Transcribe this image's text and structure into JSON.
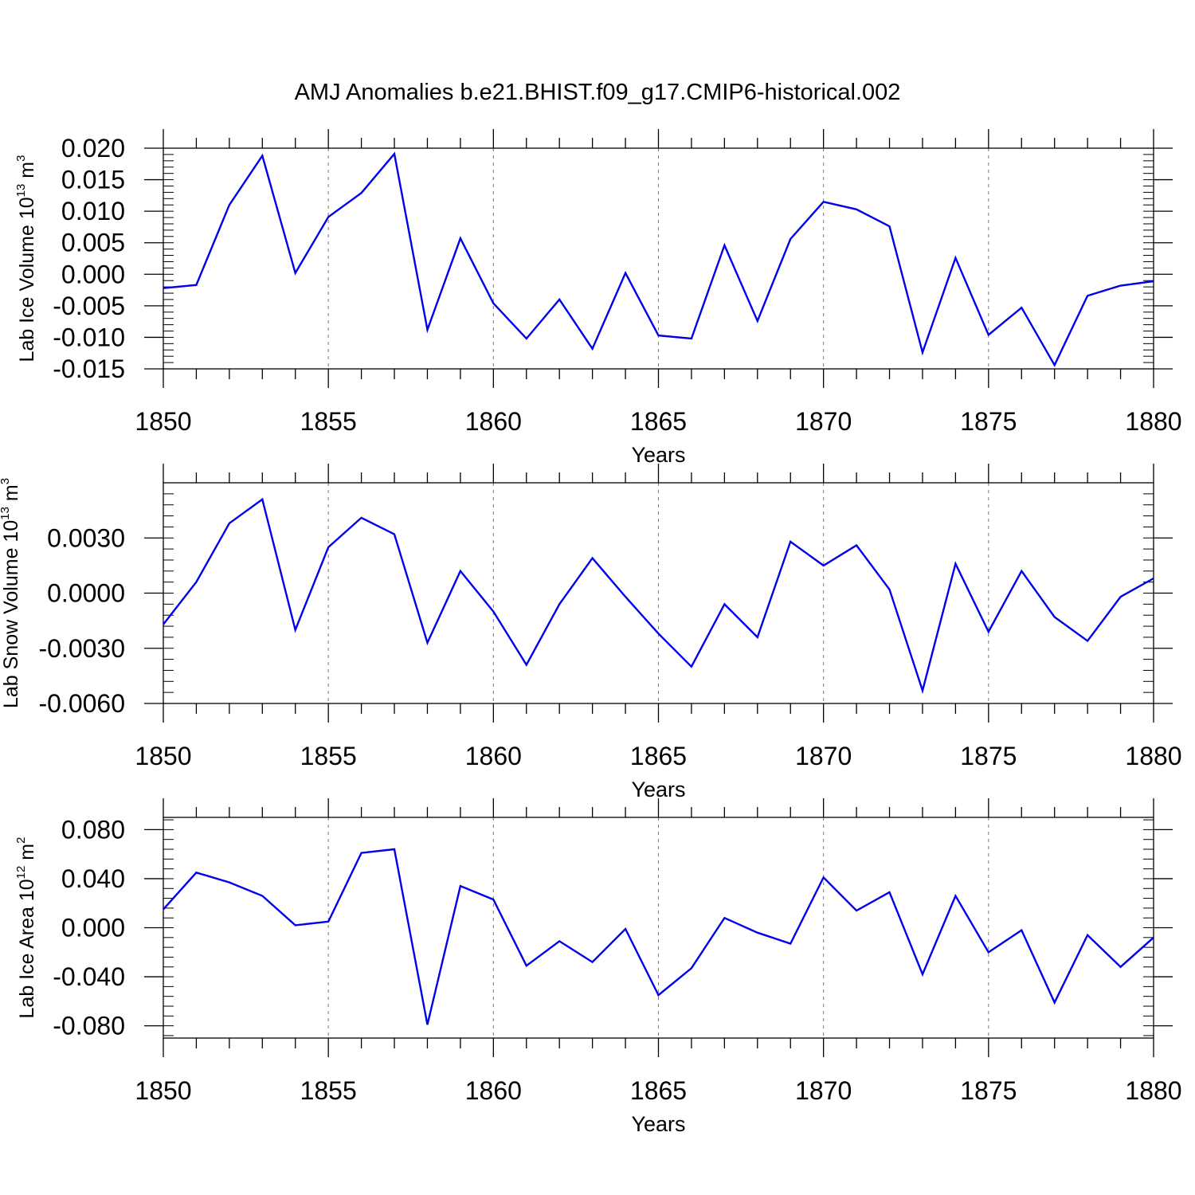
{
  "title": "AMJ Anomalies b.e21.BHIST.f09_g17.CMIP6-historical.002",
  "colors": {
    "line": "#0000ee",
    "axis": "#000000",
    "grid": "#777777"
  },
  "chart_data": [
    {
      "type": "line",
      "ylabel_text": "Lab Ice Volume 10",
      "ylabel_exp": "13",
      "ylabel_unit": "m",
      "ylabel_unit_exp": "3",
      "xlabel": "Years",
      "xlim": [
        1850,
        1880
      ],
      "ylim": [
        -0.015,
        0.02
      ],
      "yticks": [
        -0.015,
        -0.01,
        -0.005,
        0.0,
        0.005,
        0.01,
        0.015,
        0.02
      ],
      "ytick_labels": [
        "-0.015",
        "-0.010",
        "-0.005",
        "0.000",
        "0.005",
        "0.010",
        "0.015",
        "0.020"
      ],
      "xticks": [
        1850,
        1855,
        1860,
        1865,
        1870,
        1875,
        1880
      ],
      "xtick_labels": [
        "1850",
        "1855",
        "1860",
        "1865",
        "1870",
        "1875",
        "1880"
      ],
      "x": [
        1850,
        1851,
        1852,
        1853,
        1854,
        1855,
        1856,
        1857,
        1858,
        1859,
        1860,
        1861,
        1862,
        1863,
        1864,
        1865,
        1866,
        1867,
        1868,
        1869,
        1870,
        1871,
        1872,
        1873,
        1874,
        1875,
        1876,
        1877,
        1878,
        1879,
        1880
      ],
      "y": [
        -0.0022,
        -0.0017,
        0.011,
        0.0188,
        0.0002,
        0.0091,
        0.0129,
        0.0191,
        -0.0088,
        0.0057,
        -0.0046,
        -0.0102,
        -0.004,
        -0.0118,
        0.0002,
        -0.0097,
        -0.0102,
        0.0046,
        -0.0074,
        0.0056,
        0.0115,
        0.0103,
        0.0076,
        -0.0124,
        0.0026,
        -0.0096,
        -0.0053,
        -0.0144,
        -0.0034,
        -0.0018,
        -0.0011
      ]
    },
    {
      "type": "line",
      "ylabel_text": "Lab Snow Volume 10",
      "ylabel_exp": "13",
      "ylabel_unit": "m",
      "ylabel_unit_exp": "3",
      "xlabel": "Years",
      "xlim": [
        1850,
        1880
      ],
      "ylim": [
        -0.006,
        0.006
      ],
      "yticks": [
        -0.006,
        -0.003,
        0.0,
        0.003
      ],
      "ytick_labels": [
        "-0.0060",
        "-0.0030",
        "0.0000",
        "0.0030"
      ],
      "xticks": [
        1850,
        1855,
        1860,
        1865,
        1870,
        1875,
        1880
      ],
      "xtick_labels": [
        "1850",
        "1855",
        "1860",
        "1865",
        "1870",
        "1875",
        "1880"
      ],
      "x": [
        1850,
        1851,
        1852,
        1853,
        1854,
        1855,
        1856,
        1857,
        1858,
        1859,
        1860,
        1861,
        1862,
        1863,
        1864,
        1865,
        1866,
        1867,
        1868,
        1869,
        1870,
        1871,
        1872,
        1873,
        1874,
        1875,
        1876,
        1877,
        1878,
        1879,
        1880
      ],
      "y": [
        -0.0017,
        0.0006,
        0.0038,
        0.0051,
        -0.002,
        0.0025,
        0.0041,
        0.0032,
        -0.0027,
        0.0012,
        -0.001,
        -0.0039,
        -0.0006,
        0.0019,
        -0.0002,
        -0.0022,
        -0.004,
        -0.0006,
        -0.0024,
        0.0028,
        0.0015,
        0.0026,
        0.0002,
        -0.0053,
        0.0016,
        -0.0021,
        0.0012,
        -0.0013,
        -0.0026,
        -0.0002,
        0.0008
      ]
    },
    {
      "type": "line",
      "ylabel_text": "Lab Ice Area 10",
      "ylabel_exp": "12",
      "ylabel_unit": "m",
      "ylabel_unit_exp": "2",
      "xlabel": "Years",
      "xlim": [
        1850,
        1880
      ],
      "ylim": [
        -0.09,
        0.09
      ],
      "yticks": [
        -0.08,
        -0.04,
        0.0,
        0.04,
        0.08
      ],
      "ytick_labels": [
        "-0.080",
        "-0.040",
        "0.000",
        "0.040",
        "0.080"
      ],
      "xticks": [
        1850,
        1855,
        1860,
        1865,
        1870,
        1875,
        1880
      ],
      "xtick_labels": [
        "1850",
        "1855",
        "1860",
        "1865",
        "1870",
        "1875",
        "1880"
      ],
      "x": [
        1850,
        1851,
        1852,
        1853,
        1854,
        1855,
        1856,
        1857,
        1858,
        1859,
        1860,
        1861,
        1862,
        1863,
        1864,
        1865,
        1866,
        1867,
        1868,
        1869,
        1870,
        1871,
        1872,
        1873,
        1874,
        1875,
        1876,
        1877,
        1878,
        1879,
        1880
      ],
      "y": [
        0.015,
        0.045,
        0.037,
        0.026,
        0.002,
        0.005,
        0.061,
        0.064,
        -0.079,
        0.034,
        0.023,
        -0.031,
        -0.011,
        -0.028,
        -0.001,
        -0.055,
        -0.033,
        0.008,
        -0.004,
        -0.013,
        0.041,
        0.014,
        0.029,
        -0.038,
        0.026,
        -0.02,
        -0.002,
        -0.061,
        -0.006,
        -0.032,
        -0.008
      ]
    }
  ]
}
